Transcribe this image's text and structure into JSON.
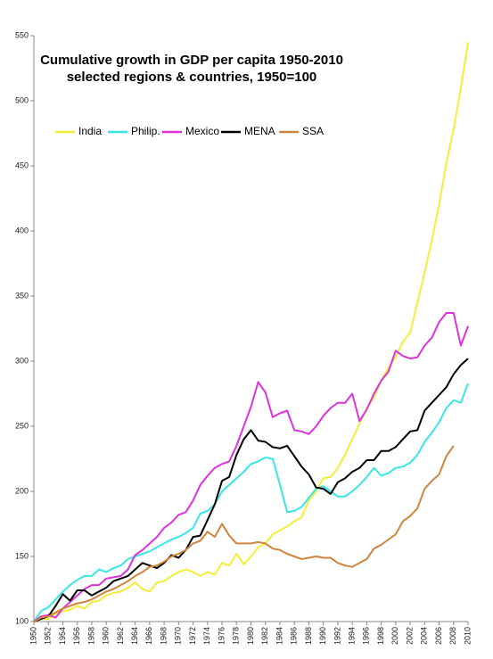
{
  "chart_data": {
    "type": "line",
    "title": "Cumulative growth in GDP per capita 1950-2010",
    "subtitle": "selected regions & countries, 1950=100",
    "x": [
      1950,
      1951,
      1952,
      1953,
      1954,
      1955,
      1956,
      1957,
      1958,
      1959,
      1960,
      1961,
      1962,
      1963,
      1964,
      1965,
      1966,
      1967,
      1968,
      1969,
      1970,
      1971,
      1972,
      1973,
      1974,
      1975,
      1976,
      1977,
      1978,
      1979,
      1980,
      1981,
      1982,
      1983,
      1984,
      1985,
      1986,
      1987,
      1988,
      1989,
      1990,
      1991,
      1992,
      1993,
      1994,
      1995,
      1996,
      1997,
      1998,
      1999,
      2000,
      2001,
      2002,
      2003,
      2004,
      2005,
      2006,
      2007,
      2008,
      2009,
      2010
    ],
    "xlim": [
      1950,
      2010
    ],
    "xticks": [
      1950,
      1952,
      1954,
      1956,
      1958,
      1960,
      1962,
      1964,
      1966,
      1968,
      1970,
      1972,
      1974,
      1976,
      1978,
      1980,
      1982,
      1984,
      1986,
      1988,
      1990,
      1992,
      1994,
      1996,
      1998,
      2000,
      2002,
      2004,
      2006,
      2008,
      2010
    ],
    "ylim": [
      100,
      550
    ],
    "yticks": [
      100,
      150,
      200,
      250,
      300,
      350,
      400,
      450,
      500,
      550
    ],
    "grid": false,
    "series": [
      {
        "name": "India",
        "color": "#f2ee3a",
        "values": [
          100,
          102,
          102,
          106,
          108,
          109,
          112,
          110,
          115,
          116,
          120,
          122,
          123,
          126,
          130,
          125,
          123,
          130,
          131,
          135,
          138,
          140,
          138,
          135,
          138,
          136,
          145,
          143,
          152,
          144,
          150,
          157,
          160,
          167,
          170,
          173,
          177,
          180,
          193,
          200,
          210,
          211,
          218,
          228,
          240,
          252,
          264,
          272,
          285,
          295,
          303,
          315,
          322,
          345,
          368,
          393,
          420,
          452,
          478,
          510,
          545
        ]
      },
      {
        "name": "Philip.",
        "color": "#3ae6e6",
        "values": [
          100,
          108,
          111,
          117,
          123,
          128,
          132,
          135,
          135,
          140,
          138,
          141,
          143,
          148,
          150,
          152,
          154,
          157,
          160,
          163,
          165,
          168,
          172,
          183,
          185,
          190,
          200,
          205,
          210,
          215,
          221,
          223,
          226,
          225,
          205,
          184,
          185,
          188,
          195,
          202,
          204,
          200,
          196,
          196,
          200,
          205,
          211,
          218,
          212,
          214,
          218,
          219,
          222,
          228,
          238,
          245,
          253,
          264,
          270,
          268,
          283
        ]
      },
      {
        "name": "Mexico",
        "color": "#dd33dd",
        "values": [
          100,
          104,
          105,
          103,
          110,
          115,
          120,
          125,
          128,
          128,
          133,
          134,
          135,
          140,
          151,
          155,
          160,
          165,
          172,
          176,
          182,
          184,
          193,
          205,
          212,
          218,
          221,
          223,
          235,
          250,
          265,
          284,
          276,
          257,
          260,
          262,
          247,
          246,
          244,
          250,
          258,
          264,
          268,
          268,
          275,
          254,
          263,
          275,
          285,
          292,
          308,
          304,
          302,
          303,
          312,
          318,
          330,
          337,
          337,
          312,
          327
        ]
      },
      {
        "name": "MENA",
        "color": "#000000",
        "values": [
          100,
          102,
          104,
          112,
          121,
          116,
          124,
          124,
          120,
          123,
          126,
          131,
          133,
          135,
          140,
          145,
          143,
          141,
          145,
          151,
          149,
          155,
          165,
          166,
          178,
          190,
          208,
          211,
          228,
          240,
          247,
          239,
          238,
          234,
          233,
          235,
          227,
          219,
          213,
          203,
          202,
          198,
          207,
          210,
          215,
          218,
          224,
          224,
          231,
          231,
          234,
          240,
          246,
          247,
          262,
          268,
          274,
          280,
          290,
          297,
          302
        ]
      },
      {
        "name": "SSA",
        "color": "#cd853f",
        "values": [
          100,
          103,
          104,
          107,
          110,
          112,
          114,
          115,
          117,
          120,
          123,
          125,
          128,
          131,
          135,
          138,
          142,
          143,
          146,
          150,
          152,
          155,
          160,
          162,
          169,
          165,
          175,
          166,
          160,
          160,
          160,
          161,
          160,
          156,
          155,
          152,
          150,
          148,
          149,
          150,
          149,
          149,
          145,
          143,
          142,
          145,
          148,
          156,
          159,
          163,
          167,
          177,
          181,
          187,
          202,
          208,
          213,
          227,
          235,
          null,
          null
        ]
      }
    ]
  }
}
